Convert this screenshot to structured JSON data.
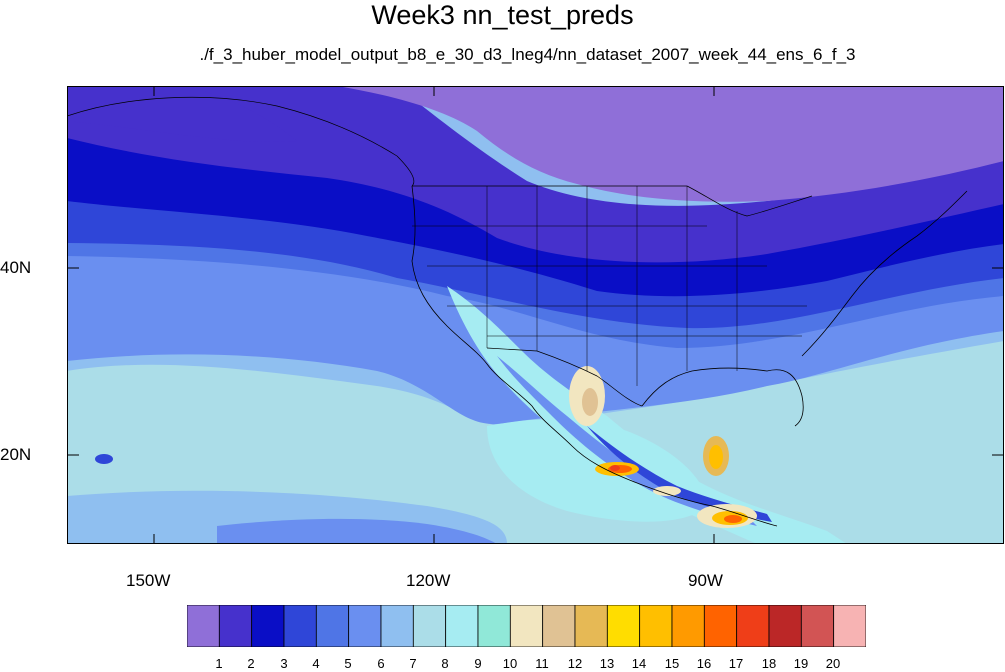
{
  "title": "Week3 nn_test_preds",
  "subtitle": "./f_3_huber_model_output_b8_e_30_d3_lneg4/nn_dataset_2007_week_44_ens_6_f_3",
  "axes": {
    "lat_labels": [
      "40N",
      "20N"
    ],
    "lon_labels": [
      "150W",
      "120W",
      "90W"
    ]
  },
  "colorbar": {
    "labels": [
      "1",
      "2",
      "3",
      "4",
      "5",
      "6",
      "7",
      "8",
      "9",
      "10",
      "11",
      "12",
      "13",
      "14",
      "15",
      "16",
      "17",
      "18",
      "19",
      "20"
    ],
    "colors": [
      "#8f6fd8",
      "#4631cc",
      "#0a0ec6",
      "#2f46d8",
      "#4f75e6",
      "#6a8ff0",
      "#8fbff0",
      "#abdde8",
      "#a6ecf2",
      "#90e8d8",
      "#f2e6c0",
      "#e0c294",
      "#e6b955",
      "#ffdd00",
      "#ffbf00",
      "#ff9a00",
      "#ff6300",
      "#ef3e18",
      "#bb2727",
      "#d25454",
      "#f7b3b3"
    ]
  },
  "map_colors": {
    "c1": "#8f6fd8",
    "c2": "#4631cc",
    "c3": "#0a0ec6",
    "c4": "#2f46d8",
    "c5": "#4f75e6",
    "c6": "#6a8ff0",
    "c7": "#8fbff0",
    "c8": "#abdde8",
    "c9": "#a6ecf2",
    "c10": "#90e8d8",
    "c11": "#f2e6c0",
    "c12": "#e0c294",
    "c13": "#e6b955",
    "c14": "#ffdd00",
    "c15": "#ffbf00",
    "c16": "#ff9a00",
    "c17": "#ff6300",
    "c18": "#ef3e18"
  }
}
